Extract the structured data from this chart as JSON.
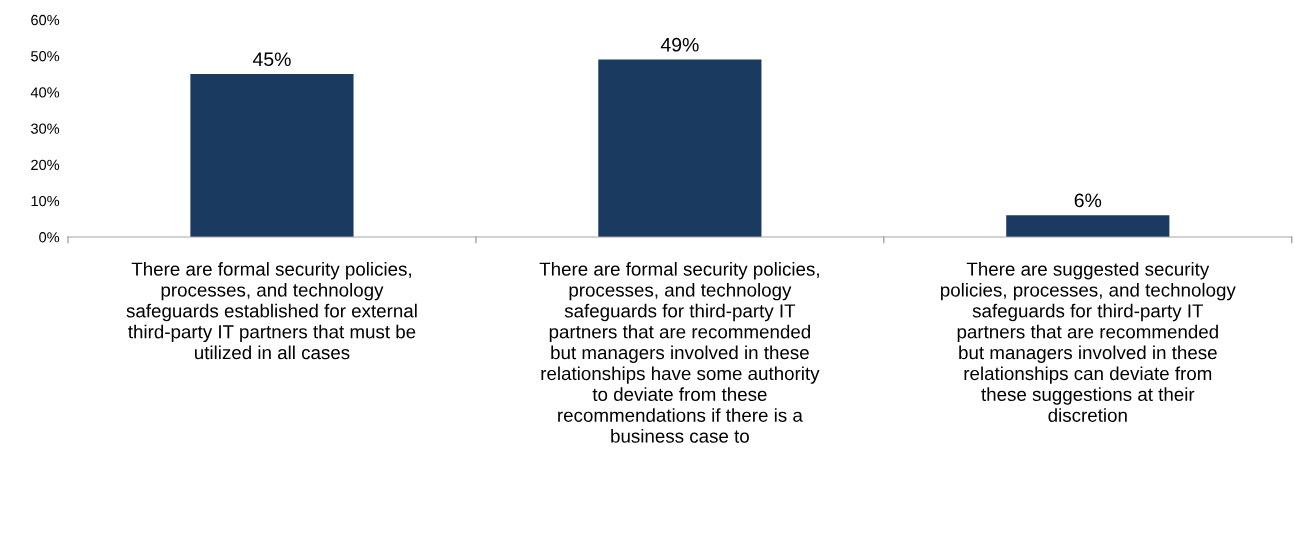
{
  "chart_data": {
    "type": "bar",
    "categories": [
      "There are formal security policies,\nprocesses, and technology\nsafeguards established for external\nthird-party IT partners that must be\nutilized in all cases",
      "There are formal security policies,\nprocesses, and technology\nsafeguards for third-party IT\npartners that are recommended\nbut managers involved in these\nrelationships have some authority\nto deviate from these\nrecommendations if there is a\nbusiness case to",
      "There are suggested security\npolicies, processes, and technology\nsafeguards for third-party IT\npartners that are recommended\nbut managers involved in these\nrelationships can deviate from\nthese suggestions at their\ndiscretion"
    ],
    "values": [
      45,
      49,
      6
    ],
    "value_labels": [
      "45%",
      "49%",
      "6%"
    ],
    "color": "#1b3a5f",
    "ylim": [
      0,
      60
    ],
    "yticks": [
      {
        "value": 0,
        "label": "0%"
      },
      {
        "value": 10,
        "label": "10%"
      },
      {
        "value": 20,
        "label": "20%"
      },
      {
        "value": 30,
        "label": "30%"
      },
      {
        "value": 40,
        "label": "40%"
      },
      {
        "value": 50,
        "label": "50%"
      },
      {
        "value": 60,
        "label": "60%"
      }
    ],
    "grid": false,
    "legend": false
  }
}
